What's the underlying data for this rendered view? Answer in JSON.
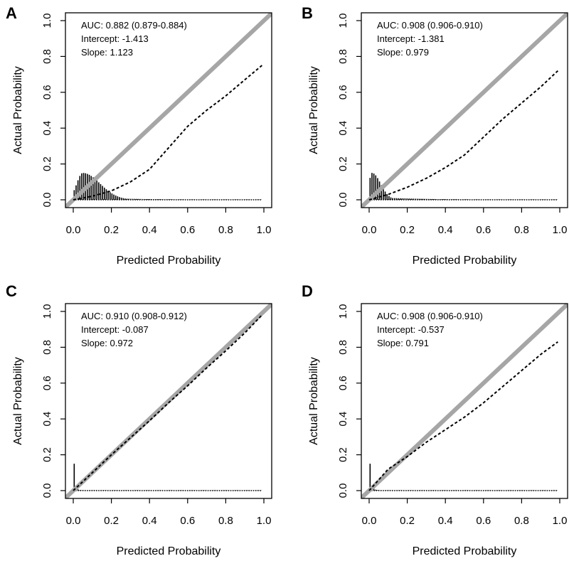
{
  "chart_data": [
    {
      "type": "line",
      "panel": "A",
      "xlabel": "Predicted Probability",
      "ylabel": "Actual Probability",
      "xlim": [
        0,
        1
      ],
      "ylim": [
        0,
        1
      ],
      "xticks": [
        "0.0",
        "0.2",
        "0.4",
        "0.6",
        "0.8",
        "1.0"
      ],
      "yticks": [
        "0.0",
        "0.2",
        "0.4",
        "0.6",
        "0.8",
        "1.0"
      ],
      "stats": [
        "AUC: 0.882 (0.879-0.884)",
        "Intercept:  -1.413",
        "Slope:  1.123"
      ],
      "series": [
        {
          "name": "reference",
          "style": "solid-grey",
          "x": [
            0,
            1
          ],
          "y": [
            0,
            1
          ]
        },
        {
          "name": "calibration",
          "style": "dashed",
          "x": [
            0.0,
            0.1,
            0.2,
            0.3,
            0.4,
            0.5,
            0.6,
            0.7,
            0.8,
            0.9,
            0.99
          ],
          "y": [
            0.0,
            0.02,
            0.05,
            0.1,
            0.17,
            0.29,
            0.41,
            0.5,
            0.58,
            0.67,
            0.75
          ]
        }
      ],
      "histogram": {
        "peak_x": 0.05,
        "peak_density": 0.15,
        "spread": 0.09
      }
    },
    {
      "type": "line",
      "panel": "B",
      "xlabel": "Predicted Probability",
      "ylabel": "Actual Probability",
      "xlim": [
        0,
        1
      ],
      "ylim": [
        0,
        1
      ],
      "xticks": [
        "0.0",
        "0.2",
        "0.4",
        "0.6",
        "0.8",
        "1.0"
      ],
      "yticks": [
        "0.0",
        "0.2",
        "0.4",
        "0.6",
        "0.8",
        "1.0"
      ],
      "stats": [
        "AUC: 0.908 (0.906-0.910)",
        "Intercept:  -1.381",
        "Slope:  0.979"
      ],
      "series": [
        {
          "name": "reference",
          "style": "solid-grey",
          "x": [
            0,
            1
          ],
          "y": [
            0,
            1
          ]
        },
        {
          "name": "calibration",
          "style": "dashed",
          "x": [
            0.0,
            0.1,
            0.2,
            0.3,
            0.4,
            0.5,
            0.6,
            0.7,
            0.8,
            0.9,
            0.99
          ],
          "y": [
            0.0,
            0.03,
            0.07,
            0.12,
            0.18,
            0.25,
            0.35,
            0.45,
            0.54,
            0.63,
            0.72
          ]
        }
      ],
      "histogram": {
        "peak_x": 0.015,
        "peak_density": 0.15,
        "spread": 0.045
      }
    },
    {
      "type": "line",
      "panel": "C",
      "xlabel": "Predicted Probability",
      "ylabel": "Actual Probability",
      "xlim": [
        0,
        1
      ],
      "ylim": [
        0,
        1
      ],
      "xticks": [
        "0.0",
        "0.2",
        "0.4",
        "0.6",
        "0.8",
        "1.0"
      ],
      "yticks": [
        "0.0",
        "0.2",
        "0.4",
        "0.6",
        "0.8",
        "1.0"
      ],
      "stats": [
        "AUC: 0.910 (0.908-0.912)",
        "Intercept:  -0.087",
        "Slope:  0.972"
      ],
      "series": [
        {
          "name": "reference",
          "style": "solid-grey",
          "x": [
            0,
            1
          ],
          "y": [
            0,
            1
          ]
        },
        {
          "name": "calibration",
          "style": "dashed",
          "x": [
            0.0,
            0.1,
            0.2,
            0.3,
            0.4,
            0.5,
            0.6,
            0.7,
            0.8,
            0.9,
            0.99
          ],
          "y": [
            0.0,
            0.1,
            0.2,
            0.295,
            0.39,
            0.49,
            0.585,
            0.685,
            0.78,
            0.88,
            0.98
          ]
        }
      ],
      "histogram": {
        "peak_x": 0.0,
        "peak_density": 0.15,
        "spread": 0.012
      }
    },
    {
      "type": "line",
      "panel": "D",
      "xlabel": "Predicted Probability",
      "ylabel": "Actual Probability",
      "xlim": [
        0,
        1
      ],
      "ylim": [
        0,
        1
      ],
      "xticks": [
        "0.0",
        "0.2",
        "0.4",
        "0.6",
        "0.8",
        "1.0"
      ],
      "yticks": [
        "0.0",
        "0.2",
        "0.4",
        "0.6",
        "0.8",
        "1.0"
      ],
      "stats": [
        "AUC: 0.908 (0.906-0.910)",
        "Intercept:  -0.537",
        "Slope:  0.791"
      ],
      "series": [
        {
          "name": "reference",
          "style": "solid-grey",
          "x": [
            0,
            1
          ],
          "y": [
            0,
            1
          ]
        },
        {
          "name": "calibration",
          "style": "dashed",
          "x": [
            0.0,
            0.1,
            0.2,
            0.3,
            0.4,
            0.5,
            0.6,
            0.7,
            0.8,
            0.9,
            0.99
          ],
          "y": [
            0.0,
            0.12,
            0.19,
            0.27,
            0.34,
            0.41,
            0.49,
            0.58,
            0.67,
            0.76,
            0.83
          ]
        }
      ],
      "histogram": {
        "peak_x": 0.0,
        "peak_density": 0.15,
        "spread": 0.015
      }
    }
  ]
}
